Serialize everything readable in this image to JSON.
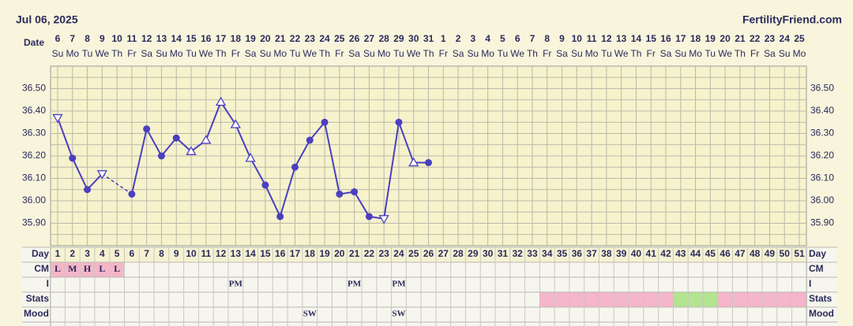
{
  "header": {
    "date": "Jul 06, 2025",
    "site": "FertilityFriend.com"
  },
  "row_labels": {
    "date": "Date",
    "day": "Day",
    "cm": "CM",
    "intercourse": "I",
    "stats": "Stats",
    "mood": "Mood"
  },
  "chart_data": {
    "type": "line",
    "dates": [
      6,
      7,
      8,
      9,
      10,
      11,
      12,
      13,
      14,
      15,
      16,
      17,
      18,
      19,
      20,
      21,
      22,
      23,
      24,
      25,
      26,
      27,
      28,
      29,
      30,
      31,
      1,
      2,
      3,
      4,
      5,
      6,
      7,
      8,
      9,
      10,
      11,
      12,
      13,
      14,
      15,
      16,
      17,
      18,
      19,
      20,
      21,
      22,
      23,
      24,
      25
    ],
    "weekdays": [
      "Su",
      "Mo",
      "Tu",
      "We",
      "Th",
      "Fr",
      "Sa",
      "Su",
      "Mo",
      "Tu",
      "We",
      "Th",
      "Fr",
      "Sa",
      "Su",
      "Mo",
      "Tu",
      "We",
      "Th",
      "Fr",
      "Sa",
      "Su",
      "Mo",
      "Tu",
      "We",
      "Th",
      "Fr",
      "Sa",
      "Su",
      "Mo",
      "Tu",
      "We",
      "Th",
      "Fr",
      "Sa",
      "Su",
      "Mo",
      "Tu",
      "We",
      "Th",
      "Fr",
      "Sa",
      "Su",
      "Mo",
      "Tu",
      "We",
      "Th",
      "Fr",
      "Sa",
      "Su",
      "Mo"
    ],
    "categories": [
      1,
      2,
      3,
      4,
      5,
      6,
      7,
      8,
      9,
      10,
      11,
      12,
      13,
      14,
      15,
      16,
      17,
      18,
      19,
      20,
      21,
      22,
      23,
      24,
      25,
      26,
      27,
      28,
      29,
      30,
      31,
      32,
      33,
      34,
      35,
      36,
      37,
      38,
      39,
      40,
      41,
      42,
      43,
      44,
      45,
      46,
      47,
      48,
      49,
      50,
      51
    ],
    "values": [
      36.37,
      36.19,
      36.05,
      36.12,
      null,
      36.03,
      36.32,
      36.2,
      36.28,
      36.22,
      36.27,
      36.44,
      36.34,
      36.19,
      36.07,
      35.93,
      36.15,
      36.27,
      36.35,
      36.03,
      36.04,
      35.93,
      35.92,
      36.35,
      36.17,
      36.17,
      null,
      null,
      null,
      null,
      null,
      null,
      null,
      null,
      null,
      null,
      null,
      null,
      null,
      null,
      null,
      null,
      null,
      null,
      null,
      null,
      null,
      null,
      null,
      null,
      null
    ],
    "markers": [
      "tri-down",
      "dot",
      "dot",
      "tri-down",
      null,
      "dot",
      "dot",
      "dot",
      "dot",
      "tri-up",
      "tri-up",
      "tri-up",
      "tri-up",
      "tri-up",
      "dot",
      "dot",
      "dot",
      "dot",
      "dot",
      "dot",
      "dot",
      "dot",
      "tri-down",
      "dot",
      "tri-up",
      "dot",
      null,
      null,
      null,
      null,
      null,
      null,
      null,
      null,
      null,
      null,
      null,
      null,
      null,
      null,
      null,
      null,
      null,
      null,
      null,
      null,
      null,
      null,
      null,
      null,
      null
    ],
    "color": "#4a3fbf",
    "ylim": [
      35.8,
      36.6
    ],
    "yticks": [
      {
        "value": 35.9,
        "label": "35.90"
      },
      {
        "value": 36.0,
        "label": "36.00"
      },
      {
        "value": 36.1,
        "label": "36.10"
      },
      {
        "value": 36.2,
        "label": "36.20"
      },
      {
        "value": 36.3,
        "label": "36.30"
      },
      {
        "value": 36.4,
        "label": "36.40"
      },
      {
        "value": 36.5,
        "label": "36.50"
      }
    ],
    "grid": true,
    "cm": [
      "L",
      "M",
      "H",
      "L",
      "L",
      null,
      null,
      null,
      null,
      null,
      null,
      null,
      null,
      null,
      null,
      null,
      null,
      null,
      null,
      null,
      null,
      null,
      null,
      null,
      null,
      null,
      null,
      null,
      null,
      null,
      null,
      null,
      null,
      null,
      null,
      null,
      null,
      null,
      null,
      null,
      null,
      null,
      null,
      null,
      null,
      null,
      null,
      null,
      null,
      null,
      null
    ],
    "cm_color": "#f4b6c8",
    "intercourse": [
      null,
      null,
      null,
      null,
      null,
      null,
      null,
      null,
      null,
      null,
      null,
      null,
      "PM",
      null,
      null,
      null,
      null,
      null,
      null,
      null,
      "PM",
      null,
      null,
      "PM",
      null,
      null,
      null,
      null,
      null,
      null,
      null,
      null,
      null,
      null,
      null,
      null,
      null,
      null,
      null,
      null,
      null,
      null,
      null,
      null,
      null,
      null,
      null,
      null,
      null,
      null,
      null
    ],
    "stats": [
      null,
      null,
      null,
      null,
      null,
      null,
      null,
      null,
      null,
      null,
      null,
      null,
      null,
      null,
      null,
      null,
      null,
      null,
      null,
      null,
      null,
      null,
      null,
      null,
      null,
      null,
      null,
      null,
      null,
      null,
      null,
      null,
      null,
      "#f5b5ca",
      "#f5b5ca",
      "#f5b5ca",
      "#f5b5ca",
      "#f5b5ca",
      "#f5b5ca",
      "#f5b5ca",
      "#f5b5ca",
      "#f5b5ca",
      "#b3e48f",
      "#b3e48f",
      "#b3e48f",
      "#f5b5ca",
      "#f5b5ca",
      "#f5b5ca",
      "#f5b5ca",
      "#f5b5ca",
      "#f5b5ca"
    ],
    "mood": [
      null,
      null,
      null,
      null,
      null,
      null,
      null,
      null,
      null,
      null,
      null,
      null,
      null,
      null,
      null,
      null,
      null,
      "SW",
      null,
      null,
      null,
      null,
      null,
      "SW",
      null,
      null,
      null,
      null,
      null,
      null,
      null,
      null,
      null,
      null,
      null,
      null,
      null,
      null,
      null,
      null,
      null,
      null,
      null,
      null,
      null,
      null,
      null,
      null,
      null,
      null,
      null
    ]
  }
}
